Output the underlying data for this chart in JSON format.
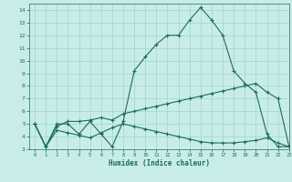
{
  "xlabel": "Humidex (Indice chaleur)",
  "xlim": [
    -0.5,
    23
  ],
  "ylim": [
    3,
    14.5
  ],
  "yticks": [
    3,
    4,
    5,
    6,
    7,
    8,
    9,
    10,
    11,
    12,
    13,
    14
  ],
  "xticks": [
    0,
    1,
    2,
    3,
    4,
    5,
    6,
    7,
    8,
    9,
    10,
    11,
    12,
    13,
    14,
    15,
    16,
    17,
    18,
    19,
    20,
    21,
    22,
    23
  ],
  "bg_color": "#c8ede8",
  "line_color": "#1e6b5e",
  "grid_color": "#a0d4cc",
  "line1_x": [
    0,
    1,
    2,
    3,
    4,
    5,
    6,
    7,
    8,
    9,
    10,
    11,
    12,
    13,
    14,
    15,
    16,
    17,
    18,
    19,
    20,
    21,
    22,
    23
  ],
  "line1_y": [
    5.0,
    3.2,
    5.0,
    5.0,
    4.2,
    5.2,
    4.2,
    3.2,
    5.2,
    9.2,
    10.3,
    11.3,
    12.0,
    12.0,
    13.2,
    14.2,
    13.2,
    12.0,
    9.2,
    8.2,
    7.5,
    4.2,
    3.2,
    3.2
  ],
  "line2_x": [
    0,
    1,
    2,
    3,
    4,
    5,
    6,
    7,
    8,
    9,
    10,
    11,
    12,
    13,
    14,
    15,
    16,
    17,
    18,
    19,
    20,
    21,
    22,
    23
  ],
  "line2_y": [
    5.0,
    3.2,
    4.8,
    5.2,
    5.2,
    5.3,
    5.5,
    5.3,
    5.8,
    6.0,
    6.2,
    6.4,
    6.6,
    6.8,
    7.0,
    7.2,
    7.4,
    7.6,
    7.8,
    8.0,
    8.2,
    7.5,
    7.0,
    3.2
  ],
  "line3_x": [
    0,
    1,
    2,
    3,
    4,
    5,
    6,
    7,
    8,
    9,
    10,
    11,
    12,
    13,
    14,
    15,
    16,
    17,
    18,
    19,
    20,
    21,
    22,
    23
  ],
  "line3_y": [
    5.0,
    3.2,
    4.5,
    4.3,
    4.1,
    3.9,
    4.3,
    4.7,
    5.0,
    4.8,
    4.6,
    4.4,
    4.2,
    4.0,
    3.8,
    3.6,
    3.5,
    3.5,
    3.5,
    3.6,
    3.7,
    3.9,
    3.5,
    3.2
  ]
}
